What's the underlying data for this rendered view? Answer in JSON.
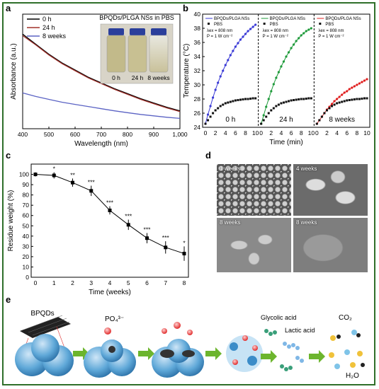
{
  "figure": {
    "panels": {
      "a": "a",
      "b": "b",
      "c": "c",
      "d": "d",
      "e": "e"
    }
  },
  "chart_data": [
    {
      "panel": "a",
      "type": "line",
      "xlabel": "Wavelength (nm)",
      "ylabel": "Absorbance (a.u.)",
      "xlim": [
        400,
        1000
      ],
      "x_ticks": [
        "400",
        "500",
        "600",
        "700",
        "800",
        "900",
        "1,000"
      ],
      "legend_placement": "top-left",
      "inset_title": "BPQDs/PLGA NSs in PBS",
      "inset_labels": [
        "0 h",
        "24 h",
        "8 weeks"
      ],
      "series": [
        {
          "name": "0 h",
          "color": "#000000",
          "x": [
            400,
            450,
            500,
            550,
            600,
            650,
            700,
            750,
            800,
            850,
            900,
            950,
            1000
          ],
          "y": [
            0.66,
            0.59,
            0.52,
            0.46,
            0.41,
            0.36,
            0.32,
            0.28,
            0.245,
            0.21,
            0.18,
            0.15,
            0.125
          ]
        },
        {
          "name": "24 h",
          "color": "#a0302a",
          "x": [
            400,
            450,
            500,
            550,
            600,
            650,
            700,
            750,
            800,
            850,
            900,
            950,
            1000
          ],
          "y": [
            0.65,
            0.585,
            0.515,
            0.455,
            0.405,
            0.355,
            0.315,
            0.275,
            0.24,
            0.205,
            0.175,
            0.145,
            0.12
          ]
        },
        {
          "name": "8 weeks",
          "color": "#5b63c4",
          "x": [
            400,
            450,
            500,
            550,
            600,
            650,
            700,
            750,
            800,
            850,
            900,
            950,
            1000
          ],
          "y": [
            0.25,
            0.225,
            0.205,
            0.185,
            0.17,
            0.155,
            0.14,
            0.125,
            0.112,
            0.1,
            0.09,
            0.08,
            0.072
          ]
        }
      ]
    },
    {
      "panel": "b",
      "type": "scatter",
      "xlabel": "Time (min)",
      "ylabel": "Temperature (°C)",
      "ylim": [
        24,
        40
      ],
      "y_ticks": [
        24,
        26,
        28,
        30,
        32,
        34,
        36,
        38,
        40
      ],
      "x_ticks": [
        0,
        2,
        4,
        6,
        8,
        10
      ],
      "legend": [
        "BPQDs/PLGA NSs",
        "PBS"
      ],
      "annotation": [
        "λex = 808 nm",
        "P = 1 W cm⁻²"
      ],
      "segments": [
        {
          "label": "0 h",
          "color": "#3a3ad6",
          "x": [
            0,
            0.5,
            1,
            1.5,
            2,
            2.5,
            3,
            3.5,
            4,
            4.5,
            5,
            5.5,
            6,
            6.5,
            7,
            7.5,
            8,
            8.5,
            9,
            9.5,
            10
          ],
          "np": [
            24.5,
            25.8,
            27.0,
            28.2,
            29.3,
            30.3,
            31.2,
            32.0,
            32.8,
            33.5,
            34.2,
            34.8,
            35.4,
            35.9,
            36.4,
            36.8,
            37.2,
            37.6,
            37.9,
            38.2,
            38.5
          ],
          "pbs": [
            24.5,
            25.0,
            25.5,
            26.0,
            26.4,
            26.7,
            27.0,
            27.2,
            27.4,
            27.5,
            27.6,
            27.7,
            27.8,
            27.85,
            27.9,
            27.95,
            28.0,
            28.0,
            28.05,
            28.1,
            28.1
          ]
        },
        {
          "label": "24 h",
          "color": "#1e9a3a",
          "x": [
            0,
            0.5,
            1,
            1.5,
            2,
            2.5,
            3,
            3.5,
            4,
            4.5,
            5,
            5.5,
            6,
            6.5,
            7,
            7.5,
            8,
            8.5,
            9,
            9.5,
            10
          ],
          "np": [
            24.5,
            25.7,
            26.9,
            28.0,
            29.1,
            30.1,
            31.0,
            31.8,
            32.6,
            33.3,
            34.0,
            34.6,
            35.2,
            35.7,
            36.2,
            36.6,
            37.0,
            37.3,
            37.6,
            37.8,
            38.0
          ],
          "pbs": [
            24.5,
            25.0,
            25.5,
            26.0,
            26.4,
            26.7,
            27.0,
            27.2,
            27.4,
            27.5,
            27.6,
            27.7,
            27.8,
            27.85,
            27.9,
            27.95,
            28.0,
            28.0,
            28.05,
            28.1,
            28.1
          ]
        },
        {
          "label": "8 weeks",
          "color": "#e02020",
          "x": [
            0,
            0.5,
            1,
            1.5,
            2,
            2.5,
            3,
            3.5,
            4,
            4.5,
            5,
            5.5,
            6,
            6.5,
            7,
            7.5,
            8,
            8.5,
            9,
            9.5,
            10
          ],
          "np": [
            24.5,
            25.0,
            25.5,
            26.0,
            26.5,
            26.9,
            27.3,
            27.7,
            28.0,
            28.3,
            28.6,
            28.9,
            29.1,
            29.4,
            29.6,
            29.8,
            30.0,
            30.2,
            30.4,
            30.6,
            30.8
          ],
          "pbs": [
            24.5,
            25.0,
            25.5,
            26.0,
            26.4,
            26.7,
            27.0,
            27.2,
            27.4,
            27.5,
            27.6,
            27.7,
            27.8,
            27.85,
            27.9,
            27.95,
            28.0,
            28.0,
            28.05,
            28.1,
            28.1
          ]
        }
      ]
    },
    {
      "panel": "c",
      "type": "line",
      "xlabel": "Time (weeks)",
      "ylabel": "Residue weight (%)",
      "ylim": [
        0,
        110
      ],
      "y_ticks": [
        0,
        10,
        20,
        30,
        40,
        50,
        60,
        70,
        80,
        90,
        100
      ],
      "x_ticks": [
        0,
        1,
        2,
        3,
        4,
        5,
        6,
        7,
        8
      ],
      "x": [
        0,
        1,
        2,
        3,
        4,
        5,
        6,
        7,
        8
      ],
      "y": [
        100,
        99,
        92,
        84,
        65,
        51,
        38,
        29,
        23
      ],
      "err": [
        2,
        3,
        4,
        5,
        4,
        5,
        5,
        6,
        7
      ],
      "sig": [
        "",
        "*",
        "**",
        "***",
        "***",
        "***",
        "***",
        "***",
        "*"
      ]
    }
  ],
  "sem": {
    "labels": [
      "1 weeks",
      "4 weeks",
      "8 weeks",
      "8 weeks"
    ]
  },
  "scheme": {
    "bpqds": "BPQDs",
    "po4": "PO₄³⁻",
    "glycolic": "Glycolic acid",
    "lactic": "Lactic acid",
    "co2": "CO₂",
    "h2o": "H₂O"
  }
}
